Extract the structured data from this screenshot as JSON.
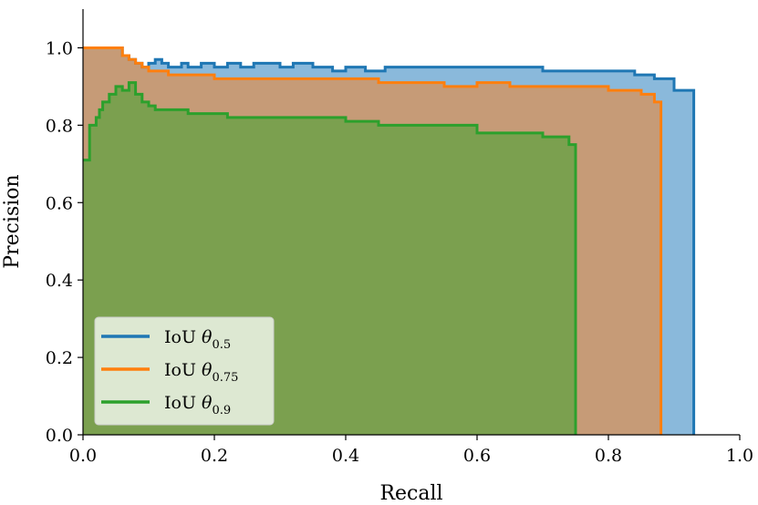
{
  "chart_data": {
    "type": "area",
    "title": "",
    "xlabel": "Recall",
    "ylabel": "Precision",
    "xlim": [
      0.0,
      1.0
    ],
    "ylim": [
      0.0,
      1.1
    ],
    "xticks": [
      0.0,
      0.2,
      0.4,
      0.6,
      0.8,
      1.0
    ],
    "yticks": [
      0.0,
      0.2,
      0.4,
      0.6,
      0.8,
      1.0
    ],
    "xtick_labels": [
      "0.0",
      "0.2",
      "0.4",
      "0.6",
      "0.8",
      "1.0"
    ],
    "ytick_labels": [
      "0.0",
      "0.2",
      "0.4",
      "0.6",
      "0.8",
      "1.0"
    ],
    "legend_position": "lower-left",
    "series": [
      {
        "name": "IoU θ0.5",
        "label_main": "IoU ",
        "label_theta": "θ",
        "label_sub": "0.5",
        "color": "#1f77b4",
        "fill": "#8ab9db",
        "x": [
          0.0,
          0.06,
          0.07,
          0.08,
          0.09,
          0.1,
          0.11,
          0.12,
          0.13,
          0.15,
          0.16,
          0.18,
          0.2,
          0.22,
          0.24,
          0.26,
          0.3,
          0.32,
          0.35,
          0.38,
          0.4,
          0.43,
          0.46,
          0.5,
          0.55,
          0.6,
          0.65,
          0.7,
          0.8,
          0.84,
          0.87,
          0.9,
          0.93
        ],
        "y": [
          1.0,
          0.98,
          0.97,
          0.96,
          0.95,
          0.96,
          0.97,
          0.96,
          0.95,
          0.96,
          0.95,
          0.96,
          0.95,
          0.96,
          0.95,
          0.96,
          0.95,
          0.96,
          0.95,
          0.94,
          0.95,
          0.94,
          0.95,
          0.95,
          0.95,
          0.95,
          0.95,
          0.94,
          0.94,
          0.93,
          0.92,
          0.89,
          0.89
        ]
      },
      {
        "name": "IoU θ0.75",
        "label_main": "IoU ",
        "label_theta": "θ",
        "label_sub": "0.75",
        "color": "#ff7f0e",
        "fill": "#c69b77",
        "x": [
          0.0,
          0.06,
          0.07,
          0.08,
          0.09,
          0.1,
          0.11,
          0.13,
          0.15,
          0.2,
          0.25,
          0.3,
          0.35,
          0.4,
          0.45,
          0.5,
          0.55,
          0.6,
          0.65,
          0.7,
          0.75,
          0.8,
          0.85,
          0.87,
          0.88
        ],
        "y": [
          1.0,
          0.98,
          0.97,
          0.96,
          0.95,
          0.94,
          0.94,
          0.93,
          0.93,
          0.92,
          0.92,
          0.92,
          0.92,
          0.92,
          0.91,
          0.91,
          0.9,
          0.91,
          0.9,
          0.9,
          0.9,
          0.89,
          0.88,
          0.86,
          0.84
        ]
      },
      {
        "name": "IoU θ0.9",
        "label_main": "IoU ",
        "label_theta": "θ",
        "label_sub": "0.9",
        "color": "#2ca02c",
        "fill": "#7ba04f",
        "x": [
          0.0,
          0.01,
          0.02,
          0.025,
          0.03,
          0.04,
          0.05,
          0.06,
          0.07,
          0.08,
          0.09,
          0.1,
          0.11,
          0.12,
          0.14,
          0.16,
          0.18,
          0.2,
          0.22,
          0.25,
          0.3,
          0.35,
          0.4,
          0.45,
          0.5,
          0.55,
          0.6,
          0.65,
          0.7,
          0.74,
          0.75
        ],
        "y": [
          0.71,
          0.8,
          0.82,
          0.84,
          0.86,
          0.88,
          0.9,
          0.89,
          0.91,
          0.88,
          0.86,
          0.85,
          0.84,
          0.84,
          0.84,
          0.83,
          0.83,
          0.83,
          0.82,
          0.82,
          0.82,
          0.82,
          0.81,
          0.8,
          0.8,
          0.8,
          0.78,
          0.78,
          0.77,
          0.75,
          0.75
        ]
      }
    ]
  }
}
